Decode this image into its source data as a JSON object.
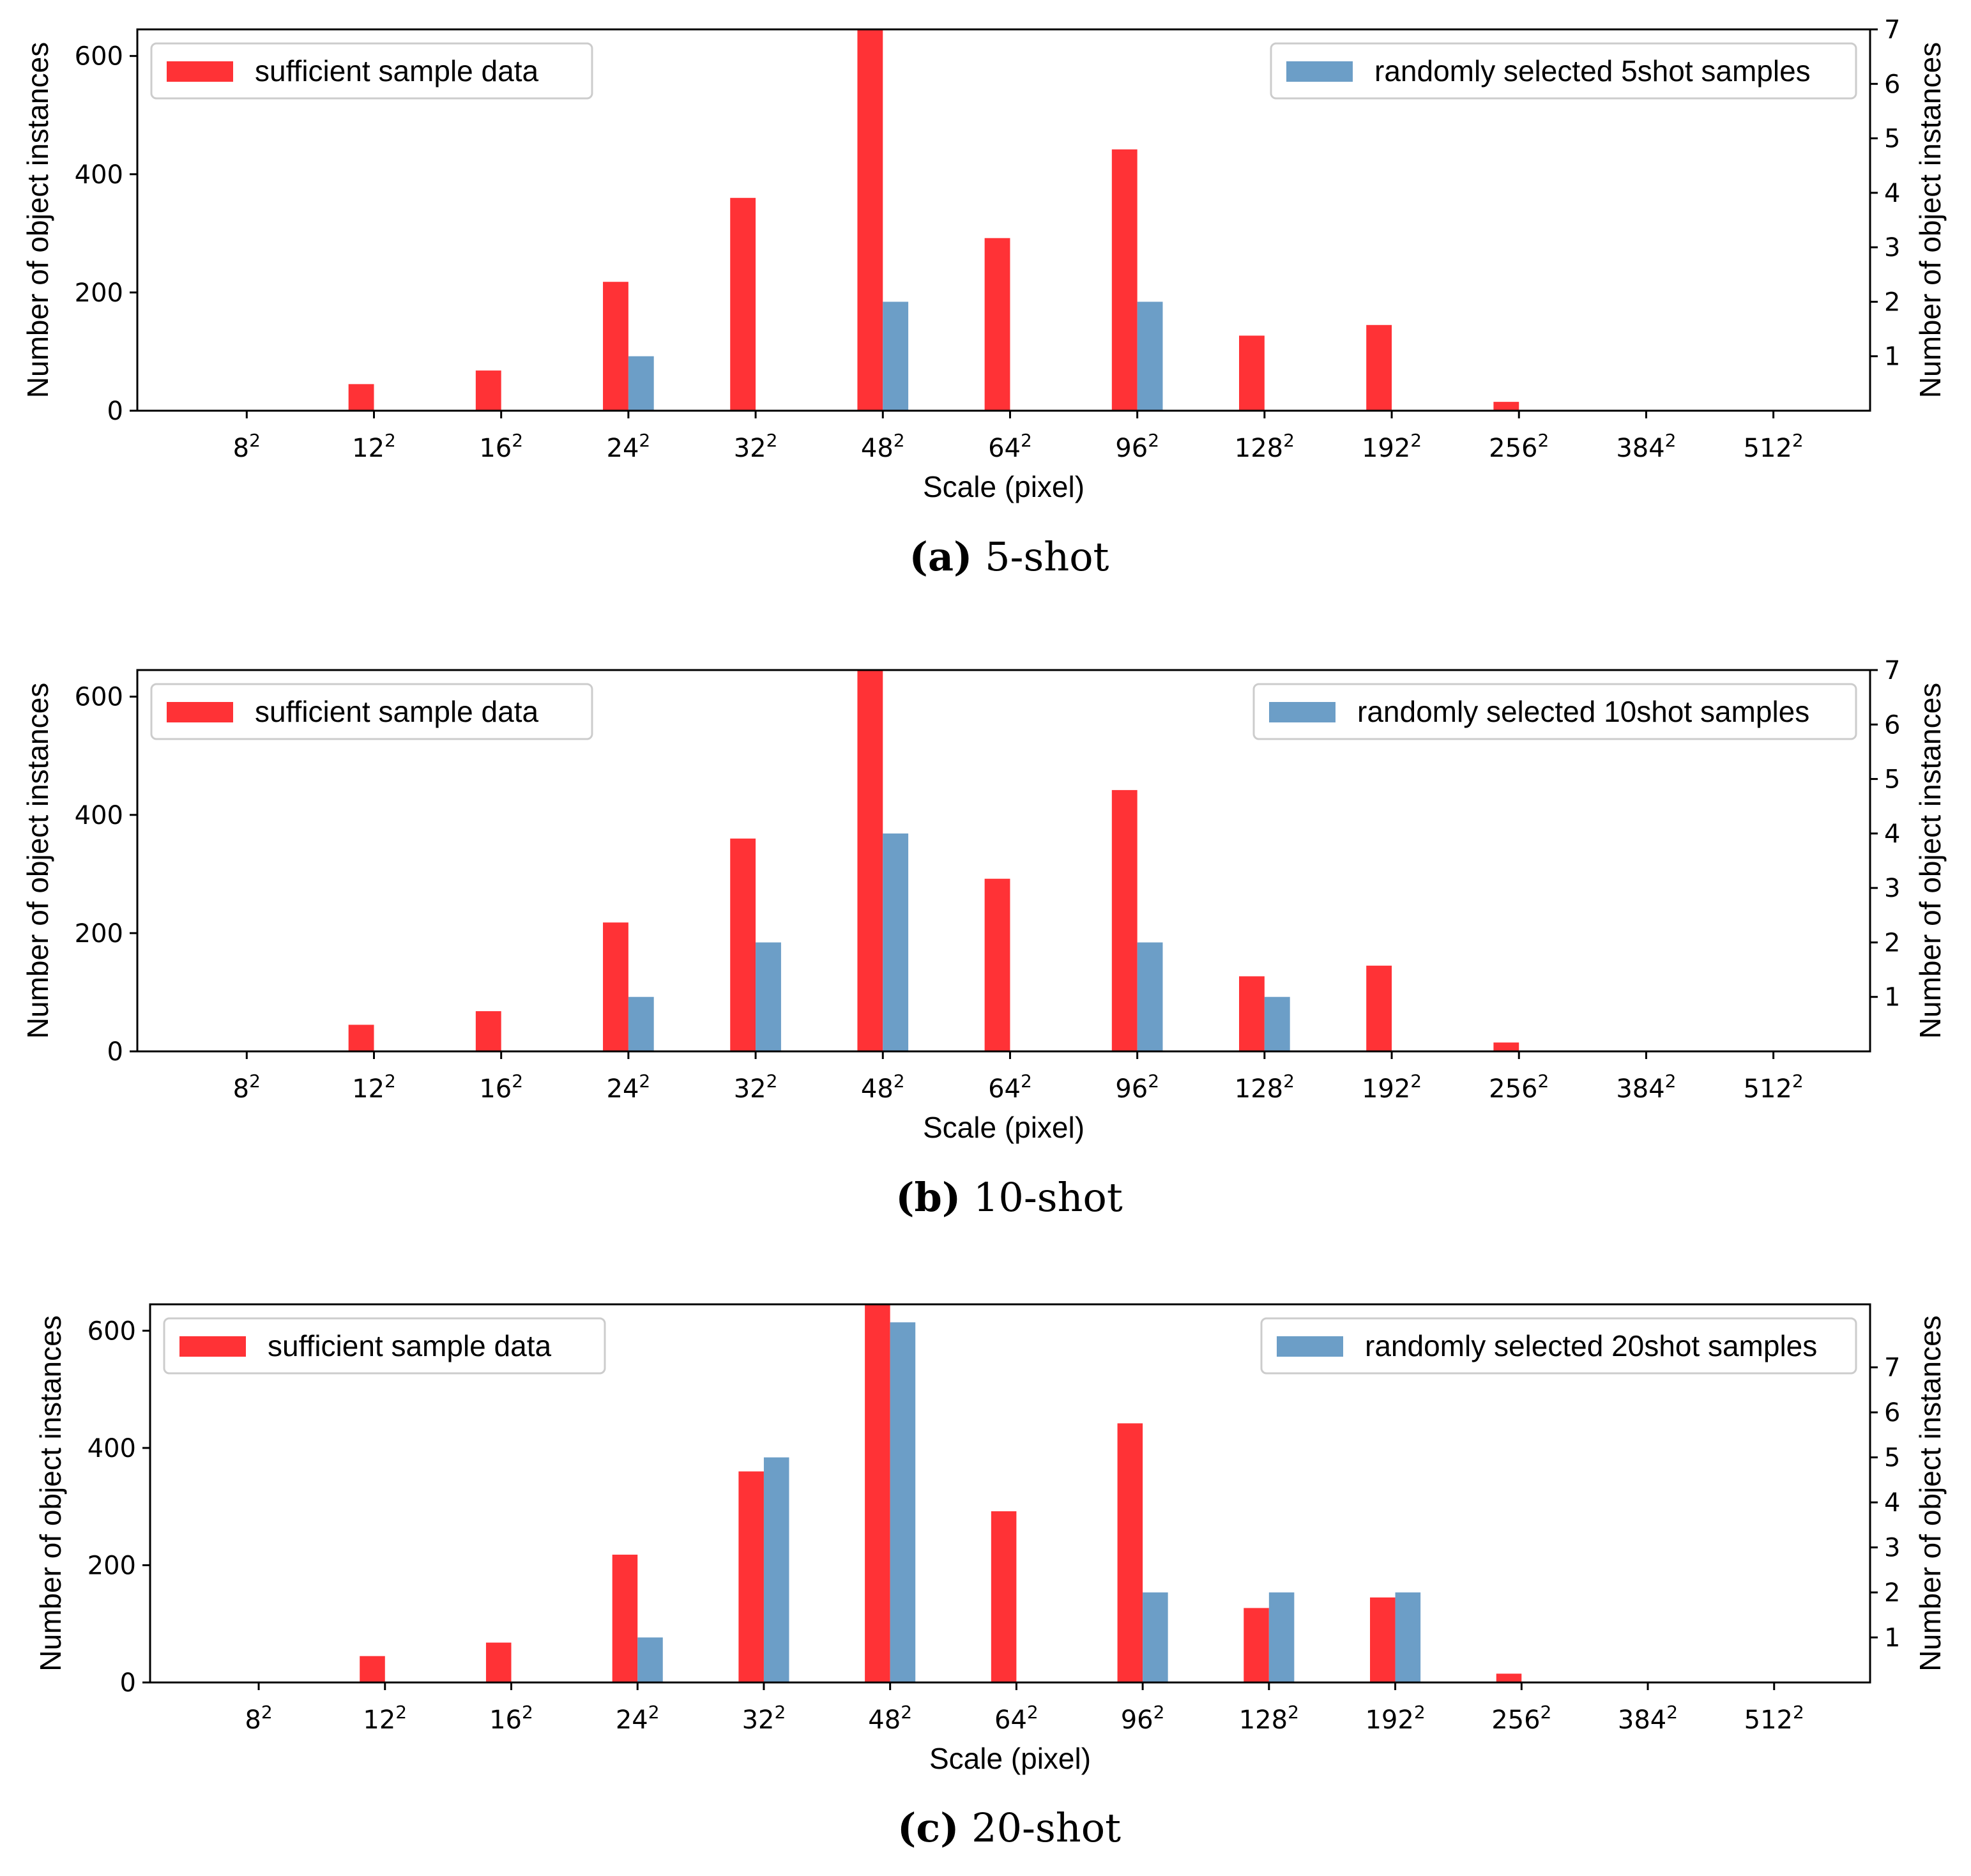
{
  "colors": {
    "sufficient": "#ff3236",
    "randomly": "#6c9ec7",
    "axis": "#000000",
    "legend_border": "#cccccc"
  },
  "chart_data": [
    {
      "type": "bar",
      "caption_letter": "(a)",
      "caption_text": "5-shot",
      "xlabel": "Scale (pixel)",
      "ylabel_left": "Number of object instances",
      "ylabel_right": "Number of object instances",
      "categories": [
        {
          "base": "8",
          "exp": "2"
        },
        {
          "base": "12",
          "exp": "2"
        },
        {
          "base": "16",
          "exp": "2"
        },
        {
          "base": "24",
          "exp": "2"
        },
        {
          "base": "32",
          "exp": "2"
        },
        {
          "base": "48",
          "exp": "2"
        },
        {
          "base": "64",
          "exp": "2"
        },
        {
          "base": "96",
          "exp": "2"
        },
        {
          "base": "128",
          "exp": "2"
        },
        {
          "base": "192",
          "exp": "2"
        },
        {
          "base": "256",
          "exp": "2"
        },
        {
          "base": "384",
          "exp": "2"
        },
        {
          "base": "512",
          "exp": "2"
        }
      ],
      "left_ylim": [
        0,
        645
      ],
      "left_ticks": [
        0,
        200,
        400,
        600
      ],
      "right_ylim": [
        0,
        7
      ],
      "right_ticks": [
        1,
        2,
        3,
        4,
        5,
        6,
        7
      ],
      "series": [
        {
          "name": "sufficient sample data",
          "axis": "left",
          "values": [
            0,
            45,
            68,
            218,
            360,
            645,
            292,
            442,
            127,
            145,
            15,
            0,
            0
          ]
        },
        {
          "name": "randomly selected 5shot samples",
          "axis": "right",
          "values": [
            0,
            0,
            0,
            1,
            0,
            2,
            0,
            2,
            0,
            0,
            0,
            0,
            0
          ]
        }
      ]
    },
    {
      "type": "bar",
      "caption_letter": "(b)",
      "caption_text": "10-shot",
      "xlabel": "Scale (pixel)",
      "ylabel_left": "Number of object instances",
      "ylabel_right": "Number of object instances",
      "categories": [
        {
          "base": "8",
          "exp": "2"
        },
        {
          "base": "12",
          "exp": "2"
        },
        {
          "base": "16",
          "exp": "2"
        },
        {
          "base": "24",
          "exp": "2"
        },
        {
          "base": "32",
          "exp": "2"
        },
        {
          "base": "48",
          "exp": "2"
        },
        {
          "base": "64",
          "exp": "2"
        },
        {
          "base": "96",
          "exp": "2"
        },
        {
          "base": "128",
          "exp": "2"
        },
        {
          "base": "192",
          "exp": "2"
        },
        {
          "base": "256",
          "exp": "2"
        },
        {
          "base": "384",
          "exp": "2"
        },
        {
          "base": "512",
          "exp": "2"
        }
      ],
      "left_ylim": [
        0,
        645
      ],
      "left_ticks": [
        0,
        200,
        400,
        600
      ],
      "right_ylim": [
        0,
        7
      ],
      "right_ticks": [
        1,
        2,
        3,
        4,
        5,
        6,
        7
      ],
      "series": [
        {
          "name": "sufficient sample data",
          "axis": "left",
          "values": [
            0,
            45,
            68,
            218,
            360,
            645,
            292,
            442,
            127,
            145,
            15,
            0,
            0
          ]
        },
        {
          "name": "randomly selected 10shot samples",
          "axis": "right",
          "values": [
            0,
            0,
            0,
            1,
            2,
            4,
            0,
            2,
            1,
            0,
            0,
            0,
            0
          ]
        }
      ]
    },
    {
      "type": "bar",
      "caption_letter": "(c)",
      "caption_text": "20-shot",
      "xlabel": "Scale (pixel)",
      "ylabel_left": "Number of object instances",
      "ylabel_right": "Number of object instances",
      "categories": [
        {
          "base": "8",
          "exp": "2"
        },
        {
          "base": "12",
          "exp": "2"
        },
        {
          "base": "16",
          "exp": "2"
        },
        {
          "base": "24",
          "exp": "2"
        },
        {
          "base": "32",
          "exp": "2"
        },
        {
          "base": "48",
          "exp": "2"
        },
        {
          "base": "64",
          "exp": "2"
        },
        {
          "base": "96",
          "exp": "2"
        },
        {
          "base": "128",
          "exp": "2"
        },
        {
          "base": "192",
          "exp": "2"
        },
        {
          "base": "256",
          "exp": "2"
        },
        {
          "base": "384",
          "exp": "2"
        },
        {
          "base": "512",
          "exp": "2"
        }
      ],
      "left_ylim": [
        0,
        645
      ],
      "left_ticks": [
        0,
        200,
        400,
        600
      ],
      "right_ylim": [
        0,
        8.4
      ],
      "right_ticks": [
        1,
        2,
        3,
        4,
        5,
        6,
        7
      ],
      "series": [
        {
          "name": "sufficient sample data",
          "axis": "left",
          "values": [
            0,
            45,
            68,
            218,
            360,
            645,
            292,
            442,
            127,
            145,
            15,
            0,
            0
          ]
        },
        {
          "name": "randomly selected 20shot samples",
          "axis": "right",
          "values": [
            0,
            0,
            0,
            1,
            5,
            8,
            0,
            2,
            2,
            2,
            0,
            0,
            0
          ]
        }
      ]
    }
  ]
}
